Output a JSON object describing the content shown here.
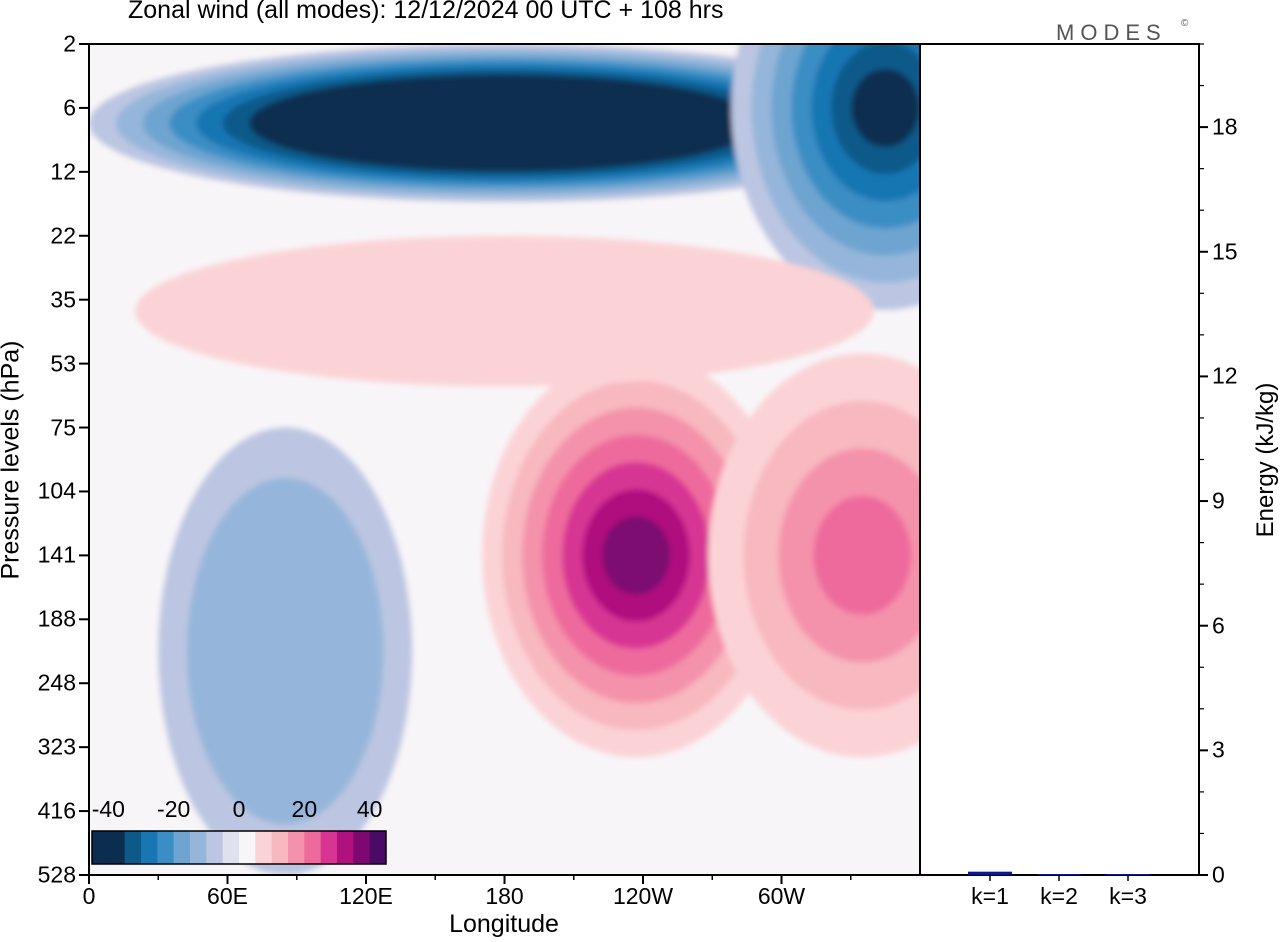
{
  "title": "Zonal wind (all modes):  12/12/2024  00 UTC  + 108 hrs",
  "logo": "MODES",
  "logo_mark": "©",
  "colors": {
    "negative_ramp": [
      "#0b2d4f",
      "#0d5a8a",
      "#1876b2",
      "#3b8ec4",
      "#6ea4d0",
      "#95b6da",
      "#bcc6e2",
      "#dfe1ef"
    ],
    "positive_ramp": [
      "#fde9e9",
      "#fbd3d6",
      "#f8b8c0",
      "#f492ab",
      "#ee6a9c",
      "#d73493",
      "#b0117f",
      "#7d0871",
      "#4a0b66"
    ],
    "zero": "#f8f5f8"
  },
  "chart_data": [
    {
      "type": "heatmap",
      "title": "Zonal wind (all modes):  12/12/2024  00 UTC  + 108 hrs",
      "xlabel": "Longitude",
      "ylabel": "Pressure levels (hPa)",
      "x_ticks": [
        "0",
        "60E",
        "120E",
        "180",
        "120W",
        "60W"
      ],
      "x_tick_degrees": [
        0,
        60,
        120,
        180,
        240,
        300
      ],
      "xlim": [
        0,
        360
      ],
      "y_ticks": [
        "2",
        "6",
        "12",
        "22",
        "35",
        "53",
        "75",
        "104",
        "141",
        "188",
        "248",
        "323",
        "416",
        "528"
      ],
      "y_order": "pressure decreasing upward (2 hPa at top, 528 hPa at bottom)",
      "colorbar": {
        "labels": [
          "-40",
          "-20",
          "0",
          "20",
          "40"
        ],
        "range": [
          -45,
          45
        ],
        "step": 5
      },
      "features": [
        {
          "name": "stratospheric easterlies",
          "pressure_hPa": [
            2,
            16
          ],
          "lon_deg": [
            0,
            360
          ],
          "value_min": -35
        },
        {
          "name": "strongest easterly core",
          "pressure_hPa": 6,
          "lon_deg": 345,
          "value": -35
        },
        {
          "name": "jet core",
          "pressure_hPa": 141,
          "lon_deg": 237,
          "value": 35
        },
        {
          "name": "secondary jet",
          "pressure_hPa": 141,
          "lon_deg": 335,
          "value": 20
        },
        {
          "name": "weak westerlies",
          "pressure_hPa": [
            22,
            60
          ],
          "lon_deg": [
            20,
            340
          ],
          "value": 5
        },
        {
          "name": "weak easterlies",
          "pressure_hPa": [
            75,
            528
          ],
          "lon_deg": [
            30,
            140
          ],
          "value": -10
        }
      ],
      "grid": false
    },
    {
      "type": "bar",
      "ylabel": "Energy (kJ/kg)",
      "categories": [
        "k=1",
        "k=2",
        "k=3"
      ],
      "values": [
        0.08,
        0.01,
        0.01
      ],
      "ylim": [
        0,
        20
      ],
      "y_ticks": [
        "0",
        "3",
        "6",
        "9",
        "12",
        "15",
        "18"
      ],
      "bar_color": "#0a1a8a",
      "grid": false
    }
  ]
}
